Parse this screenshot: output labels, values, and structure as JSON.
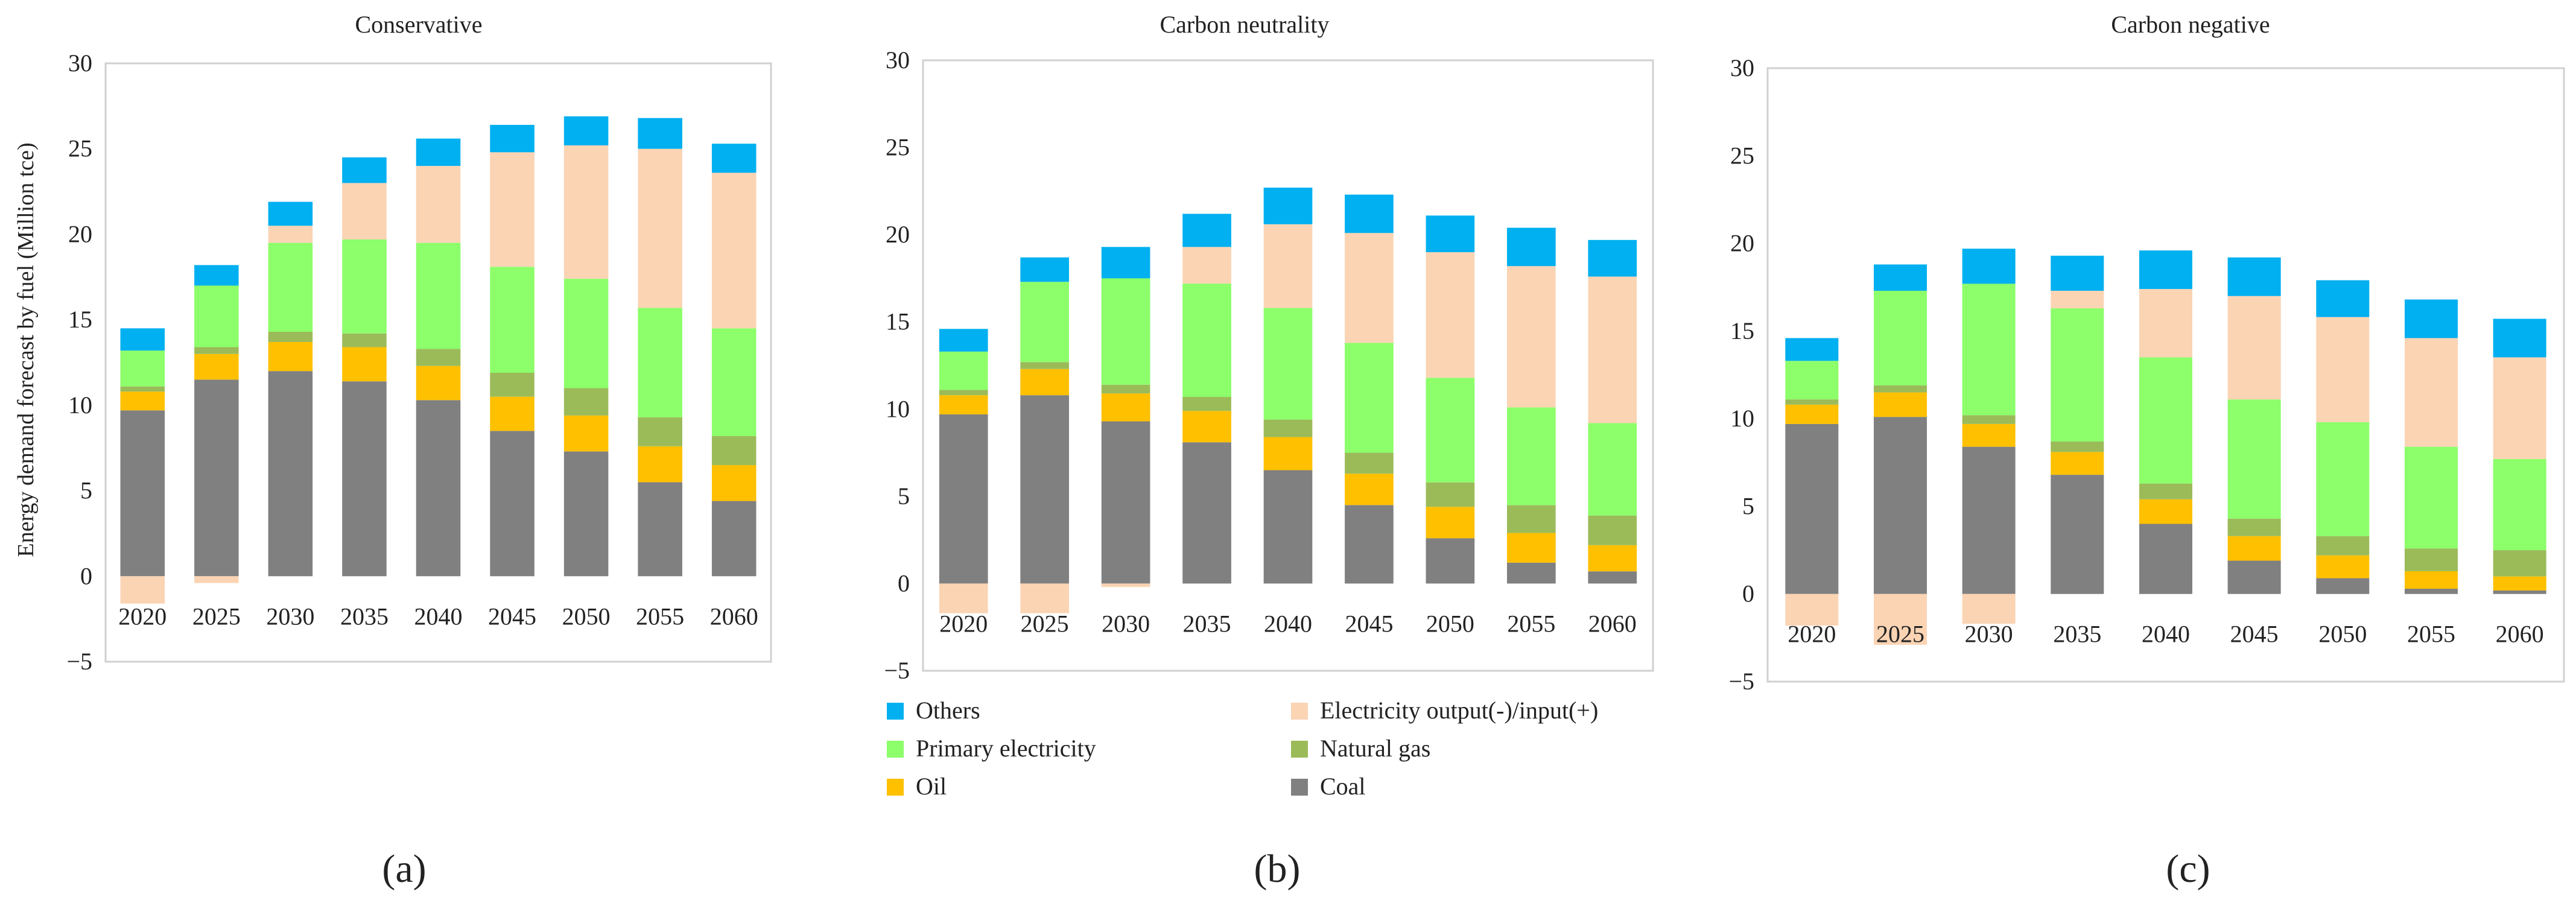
{
  "figure": {
    "y_axis_label": "Energy demand forecast by fuel (Million tce)",
    "panel_labels": [
      "(a)",
      "(b)",
      "(c)"
    ]
  },
  "series_info": [
    {
      "key": "coal",
      "name": "Coal",
      "color": "#808080"
    },
    {
      "key": "oil",
      "name": "Oil",
      "color": "#FFC000"
    },
    {
      "key": "gas",
      "name": "Natural gas",
      "color": "#9BBB59"
    },
    {
      "key": "primary",
      "name": "Primary electricity",
      "color": "#8CFF6A"
    },
    {
      "key": "elec",
      "name": "Electricity output(-)/input(+)",
      "color": "#FBD4B4"
    },
    {
      "key": "others",
      "name": "Others",
      "color": "#00B0F0"
    }
  ],
  "legend_order": [
    "others",
    "elec",
    "primary",
    "gas",
    "oil",
    "coal"
  ],
  "chart_data": [
    {
      "type": "bar",
      "stacked": true,
      "title": "Conservative",
      "categories": [
        "2020",
        "2025",
        "2030",
        "2035",
        "2040",
        "2045",
        "2050",
        "2055",
        "2060"
      ],
      "ylim": [
        -5,
        30
      ],
      "yticks": [
        -5,
        0,
        5,
        10,
        15,
        20,
        25,
        30
      ],
      "series": [
        {
          "name": "Coal",
          "values": [
            9.7,
            11.5,
            12.0,
            11.4,
            10.3,
            8.5,
            7.3,
            5.5,
            4.4
          ]
        },
        {
          "name": "Oil",
          "values": [
            1.1,
            1.5,
            1.7,
            2.0,
            2.0,
            2.0,
            2.1,
            2.1,
            2.1
          ]
        },
        {
          "name": "Natural gas",
          "values": [
            0.3,
            0.4,
            0.6,
            0.8,
            1.0,
            1.4,
            1.6,
            1.7,
            1.7
          ]
        },
        {
          "name": "Primary electricity",
          "values": [
            2.1,
            3.6,
            5.2,
            5.5,
            6.2,
            6.2,
            6.4,
            6.4,
            6.3
          ]
        },
        {
          "name": "Electricity output(-)/input(+)",
          "values": [
            -1.6,
            -0.4,
            1.0,
            3.3,
            4.5,
            6.7,
            7.8,
            9.3,
            9.1
          ]
        },
        {
          "name": "Others",
          "values": [
            1.3,
            1.2,
            1.4,
            1.5,
            1.6,
            1.6,
            1.7,
            1.8,
            1.7
          ]
        }
      ]
    },
    {
      "type": "bar",
      "stacked": true,
      "title": "Carbon neutrality",
      "categories": [
        "2020",
        "2025",
        "2030",
        "2035",
        "2040",
        "2045",
        "2050",
        "2055",
        "2060"
      ],
      "ylim": [
        -5,
        30
      ],
      "yticks": [
        -5,
        0,
        5,
        10,
        15,
        20,
        25,
        30
      ],
      "series": [
        {
          "name": "Coal",
          "values": [
            9.7,
            10.8,
            9.3,
            8.1,
            6.5,
            4.5,
            2.6,
            1.2,
            0.7
          ]
        },
        {
          "name": "Oil",
          "values": [
            1.1,
            1.5,
            1.6,
            1.8,
            1.9,
            1.8,
            1.8,
            1.7,
            1.5
          ]
        },
        {
          "name": "Natural gas",
          "values": [
            0.3,
            0.4,
            0.5,
            0.8,
            1.0,
            1.2,
            1.4,
            1.6,
            1.7
          ]
        },
        {
          "name": "Primary electricity",
          "values": [
            2.2,
            4.6,
            6.1,
            6.5,
            6.4,
            6.3,
            6.0,
            5.6,
            5.3
          ]
        },
        {
          "name": "Electricity output(-)/input(+)",
          "values": [
            -1.7,
            -1.7,
            -0.2,
            2.1,
            4.8,
            6.3,
            7.2,
            8.1,
            8.4
          ]
        },
        {
          "name": "Others",
          "values": [
            1.3,
            1.4,
            1.8,
            1.9,
            2.1,
            2.2,
            2.1,
            2.2,
            2.1
          ]
        }
      ]
    },
    {
      "type": "bar",
      "stacked": true,
      "title": "Carbon negative",
      "categories": [
        "2020",
        "2025",
        "2030",
        "2035",
        "2040",
        "2045",
        "2050",
        "2055",
        "2060"
      ],
      "ylim": [
        -5,
        30
      ],
      "yticks": [
        -5,
        0,
        5,
        10,
        15,
        20,
        25,
        30
      ],
      "series": [
        {
          "name": "Coal",
          "values": [
            9.7,
            10.1,
            8.4,
            6.8,
            4.0,
            1.9,
            0.9,
            0.3,
            0.2
          ]
        },
        {
          "name": "Oil",
          "values": [
            1.1,
            1.4,
            1.3,
            1.3,
            1.4,
            1.4,
            1.3,
            1.0,
            0.8
          ]
        },
        {
          "name": "Natural gas",
          "values": [
            0.3,
            0.4,
            0.5,
            0.6,
            0.9,
            1.0,
            1.1,
            1.3,
            1.5
          ]
        },
        {
          "name": "Primary electricity",
          "values": [
            2.2,
            5.4,
            7.5,
            7.6,
            7.2,
            6.8,
            6.5,
            5.8,
            5.2
          ]
        },
        {
          "name": "Electricity output(-)/input(+)",
          "values": [
            -1.8,
            -2.9,
            -1.7,
            1.0,
            3.9,
            5.9,
            6.0,
            6.2,
            5.8
          ]
        },
        {
          "name": "Others",
          "values": [
            1.3,
            1.5,
            2.0,
            2.0,
            2.2,
            2.2,
            2.1,
            2.2,
            2.2
          ]
        }
      ]
    }
  ]
}
